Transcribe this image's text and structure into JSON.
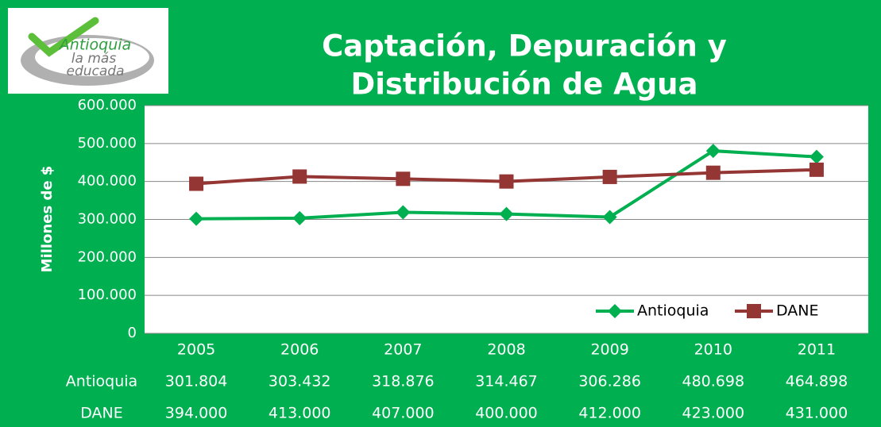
{
  "chart_data": {
    "type": "line",
    "title": [
      "Captación, Depuración y",
      "Distribución de Agua"
    ],
    "logo_text": [
      "Antioquia",
      "la más",
      "educada"
    ],
    "y_label": "Millones de $",
    "categories": [
      "2005",
      "2006",
      "2007",
      "2008",
      "2009",
      "2010",
      "2011"
    ],
    "series": [
      {
        "name": "Antioquia",
        "color": "#00b050",
        "marker": "diamond",
        "values": [
          301804,
          303432,
          318876,
          314467,
          306286,
          480698,
          464898
        ],
        "value_labels": [
          "301.804",
          "303.432",
          "318.876",
          "314.467",
          "306.286",
          "480.698",
          "464.898"
        ]
      },
      {
        "name": "DANE",
        "color": "#943634",
        "marker": "square",
        "values": [
          394000,
          413000,
          407000,
          400000,
          412000,
          423000,
          431000
        ],
        "value_labels": [
          "394.000",
          "413.000",
          "407.000",
          "400.000",
          "412.000",
          "423.000",
          "431.000"
        ]
      }
    ],
    "ylim": [
      0,
      600000
    ],
    "yticks": [
      0,
      {
        "value": 100000,
        "label": "100.000"
      },
      {
        "value": 200000,
        "label": "200.000"
      },
      {
        "value": 300000,
        "label": "300.000"
      },
      {
        "value": 400000,
        "label": "400.000"
      },
      {
        "value": 500000,
        "label": "500.000"
      },
      {
        "value": 600000,
        "label": "600.000"
      }
    ],
    "grid": true,
    "legend": "lower right"
  }
}
